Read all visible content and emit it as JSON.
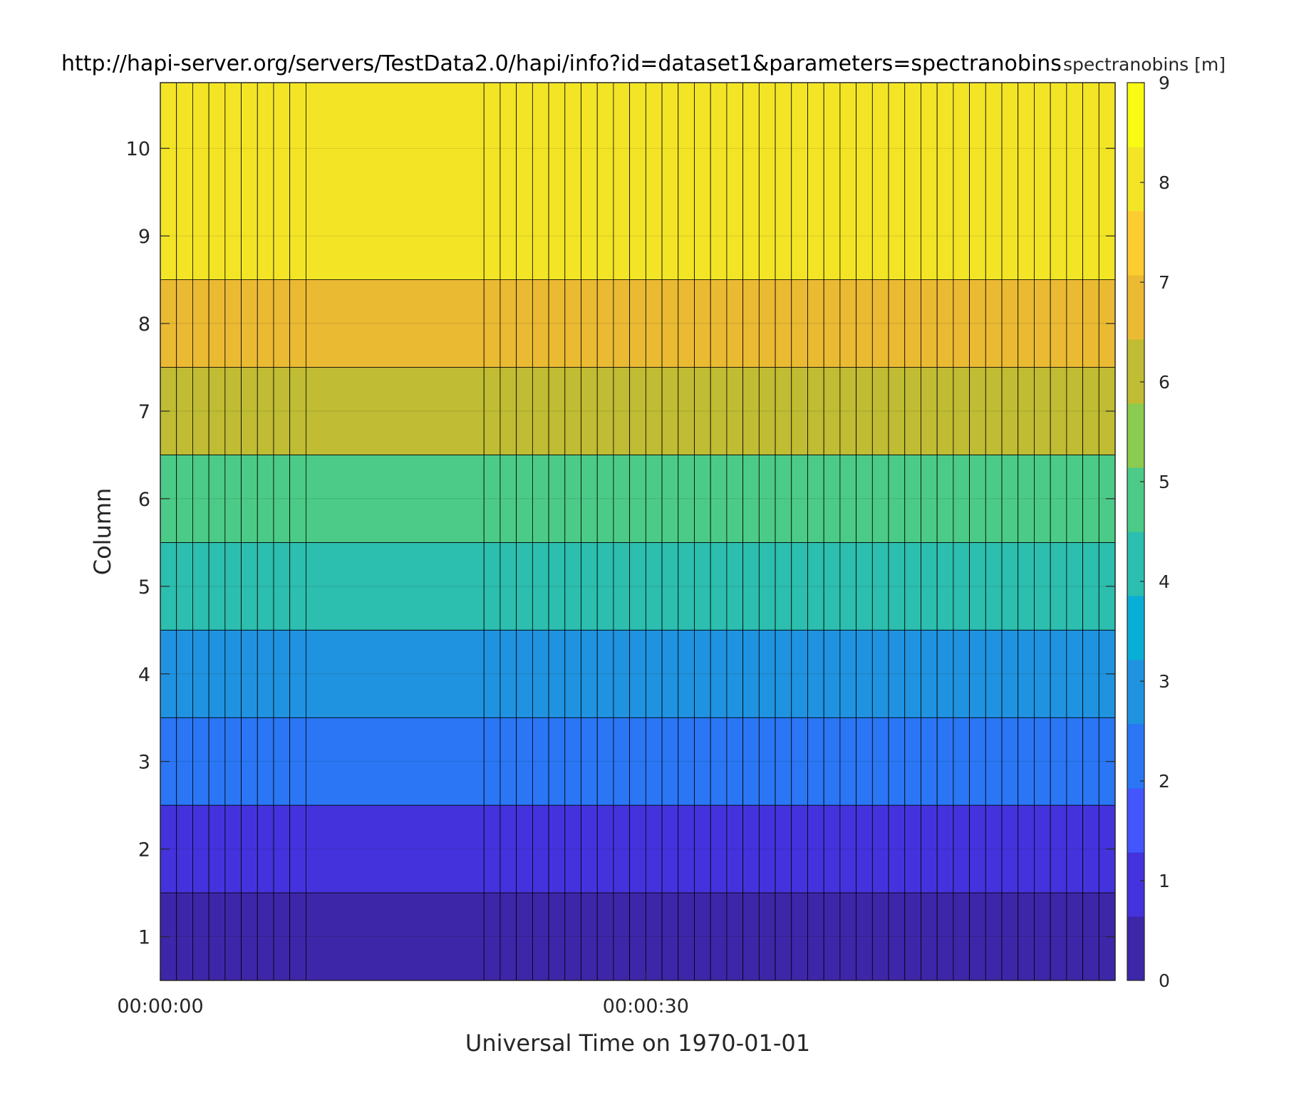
{
  "chart_data": {
    "type": "heatmap",
    "title": "http://hapi-server.org/servers/TestData2.0/hapi/info?id=dataset1&parameters=spectranobins",
    "colorbar_label": "spectranobins [m]",
    "xlabel": "Universal Time on 1970-01-01",
    "ylabel": "Column",
    "x_tick_labels": [
      "00:00:00",
      "00:00:30"
    ],
    "x_tick_seconds": [
      0,
      30
    ],
    "xlim_seconds": [
      0,
      59
    ],
    "y_ticks": [
      1,
      2,
      3,
      4,
      5,
      6,
      7,
      8,
      9,
      10
    ],
    "ylim": [
      0.5,
      10.75
    ],
    "grid": true,
    "colorbar_ticks": [
      0,
      1,
      2,
      3,
      4,
      5,
      6,
      7,
      8,
      9
    ],
    "colorbar_range": [
      0,
      9
    ],
    "colorbar_colors": [
      "#3e26a8",
      "#4433dc",
      "#4256fb",
      "#2a76f5",
      "#1f93e0",
      "#09aed7",
      "#2cbeae",
      "#4bcb87",
      "#8acb50",
      "#c0bc33",
      "#ebba33",
      "#fdcc31",
      "#f3e526",
      "#f9fb14"
    ],
    "time_seconds": [
      0,
      1,
      2,
      3,
      4,
      5,
      6,
      7,
      8,
      9,
      20,
      21,
      22,
      23,
      24,
      25,
      26,
      27,
      28,
      29,
      30,
      31,
      32,
      33,
      34,
      35,
      36,
      37,
      38,
      39,
      40,
      41,
      42,
      43,
      44,
      45,
      46,
      47,
      48,
      49,
      50,
      51,
      52,
      53,
      54,
      55,
      56,
      57,
      58
    ],
    "rows": [
      {
        "column": 1,
        "value": 0
      },
      {
        "column": 2,
        "value": 1
      },
      {
        "column": 3,
        "value": 2
      },
      {
        "column": 4,
        "value": 3
      },
      {
        "column": 5,
        "value": 4
      },
      {
        "column": 6,
        "value": 5
      },
      {
        "column": 7,
        "value": 6
      },
      {
        "column": 8,
        "value": 7
      },
      {
        "column": 9,
        "value": 8,
        "extends_to_top": true
      }
    ]
  }
}
